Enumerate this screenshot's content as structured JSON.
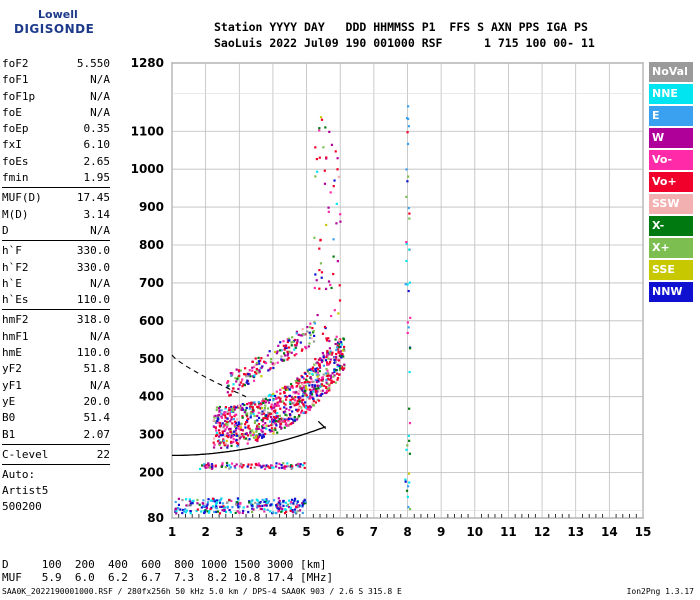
{
  "logo": {
    "line1": "Lowell",
    "line2": "DIGISONDE"
  },
  "header": {
    "line1": "Station YYYY DAY   DDD HHMMSS P1  FFS S AXN PPS IGA PS",
    "line2": "SaoLuis 2022 Jul09 190 001000 RSF      1 715 100 00- 11"
  },
  "params": {
    "group1": [
      {
        "label": "foF2",
        "value": "5.550"
      },
      {
        "label": "foF1",
        "value": "N/A"
      },
      {
        "label": "foF1p",
        "value": "N/A"
      },
      {
        "label": "foE",
        "value": "N/A"
      },
      {
        "label": "foEp",
        "value": "0.35"
      },
      {
        "label": "fxI",
        "value": "6.10"
      },
      {
        "label": "foEs",
        "value": "2.65"
      },
      {
        "label": "fmin",
        "value": "1.95"
      }
    ],
    "group2": [
      {
        "label": "MUF(D)",
        "value": "17.45"
      },
      {
        "label": "M(D)",
        "value": "3.14"
      },
      {
        "label": "D",
        "value": "N/A"
      }
    ],
    "group3": [
      {
        "label": "h`F",
        "value": "330.0"
      },
      {
        "label": "h`F2",
        "value": "330.0"
      },
      {
        "label": "h`E",
        "value": "N/A"
      },
      {
        "label": "h`Es",
        "value": "110.0"
      }
    ],
    "group4": [
      {
        "label": "hmF2",
        "value": "318.0"
      },
      {
        "label": "hmF1",
        "value": "N/A"
      },
      {
        "label": "hmE",
        "value": "110.0"
      },
      {
        "label": "yF2",
        "value": "51.8"
      },
      {
        "label": "yF1",
        "value": "N/A"
      },
      {
        "label": "yE",
        "value": "20.0"
      },
      {
        "label": "B0",
        "value": "51.4"
      },
      {
        "label": "B1",
        "value": "2.07"
      }
    ],
    "group5": [
      {
        "label": "C-level",
        "value": "22"
      }
    ],
    "auto": [
      "Auto:",
      "Artist5",
      "500200"
    ]
  },
  "legend": [
    {
      "label": "NoVal",
      "color": "#9a9a9a"
    },
    {
      "label": "NNE",
      "color": "#00e5f0"
    },
    {
      "label": "E",
      "color": "#3aa0f0"
    },
    {
      "label": "W",
      "color": "#b0009a"
    },
    {
      "label": "Vo-",
      "color": "#ff2aa8"
    },
    {
      "label": "Vo+",
      "color": "#f0002a"
    },
    {
      "label": "SSW",
      "color": "#f2b0b0"
    },
    {
      "label": "X-",
      "color": "#007a10"
    },
    {
      "label": "X+",
      "color": "#7cbf50"
    },
    {
      "label": "SSE",
      "color": "#c8c800"
    },
    {
      "label": "NNW",
      "color": "#1010d0"
    }
  ],
  "footer": {
    "line1": "D     100  200  400  600  800 1000 1500 3000 [km]",
    "line2": "MUF   5.9  6.0  6.2  6.7  7.3  8.2 10.8 17.4 [MHz]",
    "filename": "SAA0K_2022190001000.RSF / 280fx256h 50 kHz 5.0 km / DPS-4 SAA0K 903 / 2.6 S 315.8 E",
    "version": "Ion2Png 1.3.17"
  },
  "chart_data": {
    "type": "scatter",
    "xlim": [
      1,
      15
    ],
    "ylim": [
      80,
      1280
    ],
    "x_ticks": [
      1,
      2,
      3,
      4,
      5,
      6,
      7,
      8,
      9,
      10,
      11,
      12,
      13,
      14,
      15
    ],
    "y_ticks": [
      80,
      200,
      300,
      400,
      500,
      600,
      700,
      800,
      900,
      1000,
      1100,
      1280
    ],
    "grid": true
  }
}
